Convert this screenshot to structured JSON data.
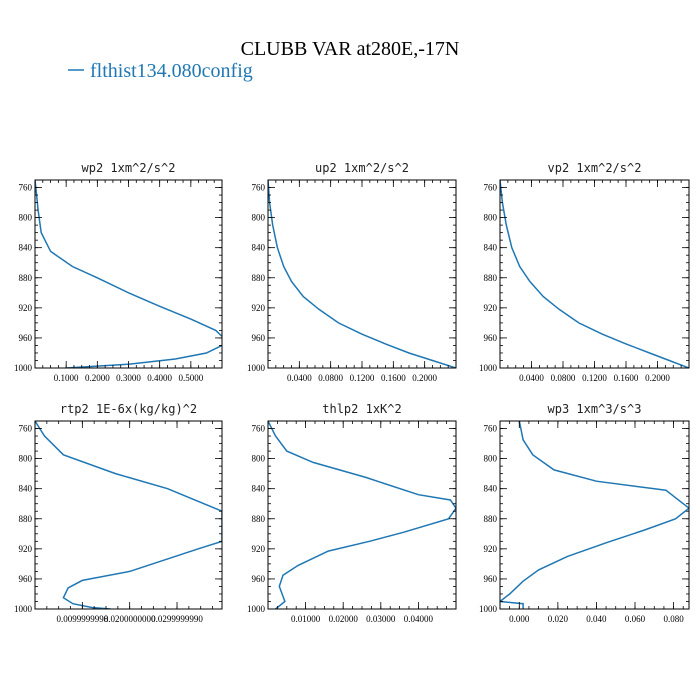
{
  "figure": {
    "title": "CLUBB VAR at280E,-17N",
    "legend_label": "flthist134.080config",
    "line_color": "#1f77b4"
  },
  "chart_data": [
    {
      "type": "line",
      "title": "wp2  1xm^2/s^2",
      "ylim": [
        1000,
        750
      ],
      "xlim": [
        0,
        0.6
      ],
      "yticks": [
        760,
        800,
        840,
        880,
        920,
        960,
        1000
      ],
      "xticks": [
        0.1,
        0.2,
        0.3,
        0.4,
        0.5
      ],
      "xtick_labels": [
        "0.1000",
        "0.2000",
        "0.3000",
        "0.4000",
        "0.5000"
      ],
      "series": [
        {
          "x": [
            0.0,
            0.005,
            0.01,
            0.02,
            0.05,
            0.12,
            0.2,
            0.3,
            0.4,
            0.5,
            0.58,
            0.605,
            0.6,
            0.55,
            0.45,
            0.3,
            0.1
          ],
          "y": [
            750,
            770,
            790,
            820,
            845,
            865,
            880,
            900,
            918,
            935,
            950,
            960,
            970,
            980,
            988,
            995,
            1000
          ]
        }
      ]
    },
    {
      "type": "line",
      "title": "up2  1xm^2/s^2",
      "ylim": [
        1000,
        750
      ],
      "xlim": [
        0,
        0.24
      ],
      "yticks": [
        760,
        800,
        840,
        880,
        920,
        960,
        1000
      ],
      "xticks": [
        0.04,
        0.08,
        0.12,
        0.16,
        0.2
      ],
      "xtick_labels": [
        "0.0400",
        "0.0800",
        "0.1200",
        "0.1600",
        "0.2000"
      ],
      "series": [
        {
          "x": [
            0.0,
            0.002,
            0.006,
            0.012,
            0.02,
            0.03,
            0.045,
            0.065,
            0.09,
            0.12,
            0.15,
            0.18,
            0.21,
            0.24
          ],
          "y": [
            750,
            780,
            810,
            840,
            865,
            885,
            905,
            922,
            940,
            955,
            968,
            980,
            990,
            1000
          ]
        }
      ]
    },
    {
      "type": "line",
      "title": "vp2  1xm^2/s^2",
      "ylim": [
        1000,
        750
      ],
      "xlim": [
        0,
        0.24
      ],
      "yticks": [
        760,
        800,
        840,
        880,
        920,
        960,
        1000
      ],
      "xticks": [
        0.04,
        0.08,
        0.12,
        0.16,
        0.2
      ],
      "xtick_labels": [
        "0.0400",
        "0.0800",
        "0.1200",
        "0.1600",
        "0.2000"
      ],
      "series": [
        {
          "x": [
            0.0,
            0.003,
            0.008,
            0.015,
            0.025,
            0.038,
            0.055,
            0.075,
            0.1,
            0.13,
            0.16,
            0.19,
            0.215,
            0.24
          ],
          "y": [
            750,
            780,
            810,
            840,
            865,
            885,
            905,
            922,
            940,
            955,
            968,
            980,
            990,
            1000
          ]
        }
      ]
    },
    {
      "type": "line",
      "title": "rtp2  1E-6x(kg/kg)^2",
      "ylim": [
        1000,
        750
      ],
      "xlim": [
        0,
        0.0395
      ],
      "yticks": [
        760,
        800,
        840,
        880,
        920,
        960,
        1000
      ],
      "xticks": [
        0.01,
        0.02,
        0.03
      ],
      "xtick_labels": [
        "0.0099999998",
        "0.0200000000",
        "0.0299999990"
      ],
      "series": [
        {
          "x": [
            0.0,
            0.002,
            0.006,
            0.017,
            0.028,
            0.0395,
            0.0395,
            0.0345,
            0.02,
            0.01,
            0.007,
            0.006,
            0.008,
            0.012,
            0.016
          ],
          "y": [
            750,
            770,
            795,
            820,
            840,
            870,
            910,
            920,
            950,
            962,
            972,
            985,
            993,
            998,
            1000
          ]
        }
      ]
    },
    {
      "type": "line",
      "title": "thlp2  1xK^2",
      "ylim": [
        1000,
        750
      ],
      "xlim": [
        0,
        0.05
      ],
      "yticks": [
        760,
        800,
        840,
        880,
        920,
        960,
        1000
      ],
      "xticks": [
        0.01,
        0.02,
        0.03,
        0.04
      ],
      "xtick_labels": [
        "0.01000",
        "0.02000",
        "0.03000",
        "0.04000"
      ],
      "series": [
        {
          "x": [
            0.0,
            0.002,
            0.005,
            0.012,
            0.026,
            0.04,
            0.0485,
            0.05,
            0.048,
            0.036,
            0.027,
            0.016,
            0.008,
            0.004,
            0.003,
            0.0045,
            0.002
          ],
          "y": [
            750,
            770,
            790,
            805,
            825,
            848,
            855,
            866,
            880,
            898,
            910,
            923,
            942,
            955,
            970,
            990,
            1000
          ]
        }
      ]
    },
    {
      "type": "line",
      "title": "wp3  1xm^3/s^3",
      "ylim": [
        1000,
        750
      ],
      "xlim": [
        -0.01,
        0.088
      ],
      "yticks": [
        760,
        800,
        840,
        880,
        920,
        960,
        1000
      ],
      "xticks": [
        0.0,
        0.02,
        0.04,
        0.06,
        0.08
      ],
      "xtick_labels": [
        "0.000",
        "0.020",
        "0.040",
        "0.060",
        "0.080"
      ],
      "series": [
        {
          "x": [
            0.0,
            0.002,
            0.007,
            0.018,
            0.04,
            0.076,
            0.088,
            0.081,
            0.065,
            0.045,
            0.025,
            0.01,
            0.002,
            -0.005,
            -0.01,
            0.002,
            0.002
          ],
          "y": [
            750,
            775,
            795,
            815,
            830,
            842,
            866,
            880,
            895,
            912,
            930,
            948,
            963,
            980,
            990,
            993,
            1000
          ]
        }
      ]
    }
  ]
}
